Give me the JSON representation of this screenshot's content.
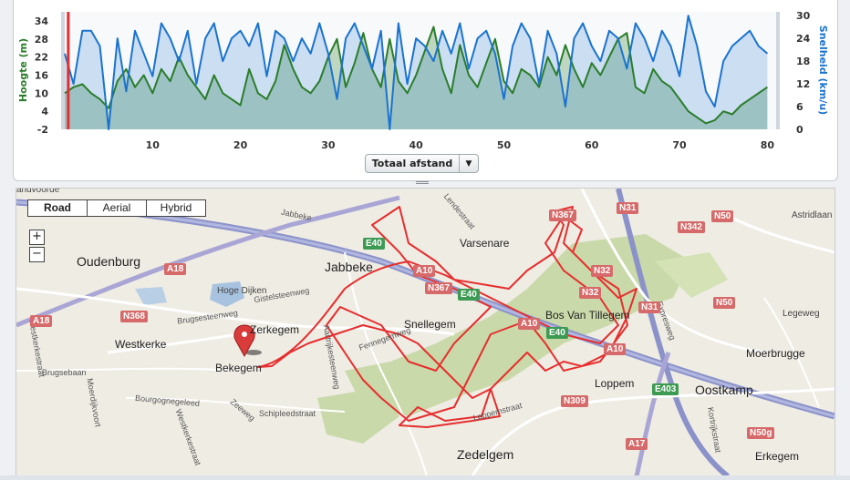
{
  "chart_data": {
    "type": "area",
    "x_ticks": [
      10,
      20,
      30,
      40,
      50,
      60,
      70,
      80
    ],
    "xlim": [
      0,
      81
    ],
    "left_axis": {
      "label": "Hoogte (m)",
      "ticks": [
        34,
        28,
        22,
        16,
        10,
        4,
        -2
      ],
      "ylim": [
        -2,
        37
      ],
      "color": "#2a7d2a"
    },
    "right_axis": {
      "label": "Snelheid (km/u)",
      "ticks": [
        30,
        24,
        18,
        12,
        6,
        0
      ],
      "ylim": [
        0,
        31
      ],
      "color": "#1a73d0"
    },
    "cursor_x": 0.4,
    "series": [
      {
        "name": "Hoogte",
        "axis": "left",
        "color": "#2a7d2a",
        "x": [
          0,
          1,
          2,
          3,
          4,
          5,
          6,
          7,
          8,
          9,
          10,
          11,
          12,
          13,
          14,
          15,
          16,
          17,
          18,
          19,
          20,
          21,
          22,
          23,
          24,
          25,
          26,
          27,
          28,
          29,
          30,
          31,
          32,
          33,
          34,
          35,
          36,
          37,
          38,
          39,
          40,
          41,
          42,
          43,
          44,
          45,
          46,
          47,
          48,
          49,
          50,
          51,
          52,
          53,
          54,
          55,
          56,
          57,
          58,
          59,
          60,
          61,
          62,
          63,
          64,
          65,
          66,
          67,
          68,
          69,
          70,
          71,
          72,
          73,
          74,
          75,
          76,
          77,
          78,
          79,
          80
        ],
        "values": [
          10,
          12,
          13,
          10,
          8,
          5,
          14,
          18,
          12,
          16,
          10,
          18,
          14,
          22,
          16,
          12,
          8,
          16,
          10,
          8,
          6,
          18,
          10,
          8,
          14,
          26,
          18,
          12,
          10,
          14,
          22,
          28,
          12,
          20,
          30,
          18,
          12,
          28,
          14,
          10,
          16,
          24,
          32,
          18,
          10,
          26,
          16,
          12,
          20,
          28,
          14,
          10,
          18,
          16,
          12,
          22,
          16,
          26,
          18,
          12,
          20,
          16,
          22,
          28,
          30,
          12,
          10,
          18,
          14,
          12,
          8,
          4,
          2,
          0,
          1,
          4,
          3,
          6,
          8,
          10,
          12
        ]
      },
      {
        "name": "Snelheid",
        "axis": "right",
        "color": "#1a73d0",
        "x": [
          0,
          1,
          2,
          3,
          4,
          5,
          6,
          7,
          8,
          9,
          10,
          11,
          12,
          13,
          14,
          15,
          16,
          17,
          18,
          19,
          20,
          21,
          22,
          23,
          24,
          25,
          26,
          27,
          28,
          29,
          30,
          31,
          32,
          33,
          34,
          35,
          36,
          37,
          38,
          39,
          40,
          41,
          42,
          43,
          44,
          45,
          46,
          47,
          48,
          49,
          50,
          51,
          52,
          53,
          54,
          55,
          56,
          57,
          58,
          59,
          60,
          61,
          62,
          63,
          64,
          65,
          66,
          67,
          68,
          69,
          70,
          71,
          72,
          73,
          74,
          75,
          76,
          77,
          78,
          79,
          80
        ],
        "values": [
          20,
          12,
          26,
          26,
          22,
          0,
          24,
          10,
          26,
          20,
          14,
          28,
          24,
          18,
          26,
          12,
          24,
          28,
          18,
          24,
          26,
          22,
          28,
          14,
          26,
          24,
          18,
          24,
          20,
          28,
          20,
          8,
          24,
          28,
          22,
          16,
          26,
          0,
          28,
          12,
          24,
          22,
          18,
          26,
          20,
          28,
          16,
          24,
          26,
          20,
          8,
          22,
          28,
          24,
          12,
          26,
          20,
          6,
          24,
          28,
          22,
          18,
          26,
          24,
          16,
          28,
          24,
          18,
          26,
          22,
          14,
          30,
          22,
          10,
          6,
          18,
          22,
          24,
          26,
          22,
          20
        ]
      }
    ]
  },
  "chart_controls": {
    "distance_select": "Totaal afstand"
  },
  "map": {
    "types": [
      "Road",
      "Aerial",
      "Hybrid"
    ],
    "active_type": "Road",
    "zoom_in": "+",
    "zoom_out": "−",
    "places_large": [
      "Oudenburg",
      "Jabbeke",
      "Oostkamp",
      "Zedelgem"
    ],
    "places_medium": [
      "Varsenare",
      "Snellegem",
      "Bekegem",
      "Westkerke",
      "Zerkegem",
      "Loppem",
      "Moerbrugge",
      "Erkegem",
      "Bos Van Tillegem"
    ],
    "places_small": [
      "Hoge Dijken",
      "Astridlaan",
      "Legeweg",
      "andvoorde"
    ],
    "streets": [
      "Jabbeke",
      "Gistelsteenweg",
      "Brugsesteenweg",
      "Brugsebaan",
      "Bourgognegeleed",
      "Westkerkestraat",
      "Schipleedstraat",
      "Zeeweg",
      "Fennegemweg",
      "Expresweg",
      "Loppemstraat",
      "Aartrijkesteenweg",
      "Moerdijkvoort",
      "Westkerkestraat",
      "Lendestraat",
      "Kortrijkstraat"
    ],
    "shields_red": [
      "A18",
      "A18",
      "N368",
      "A10",
      "N367",
      "N367",
      "N31",
      "N342",
      "N50",
      "N32",
      "N32",
      "N31",
      "N50",
      "A10",
      "A10",
      "N309",
      "A17",
      "N50g"
    ],
    "shields_green": [
      "E40",
      "E40",
      "E40",
      "E403"
    ]
  },
  "colors": {
    "route": "#e62e2e",
    "forest": "#c9d9a9",
    "road": "#a9a6d6",
    "highway": "#8b92c9",
    "water": "#a8c3e0"
  }
}
